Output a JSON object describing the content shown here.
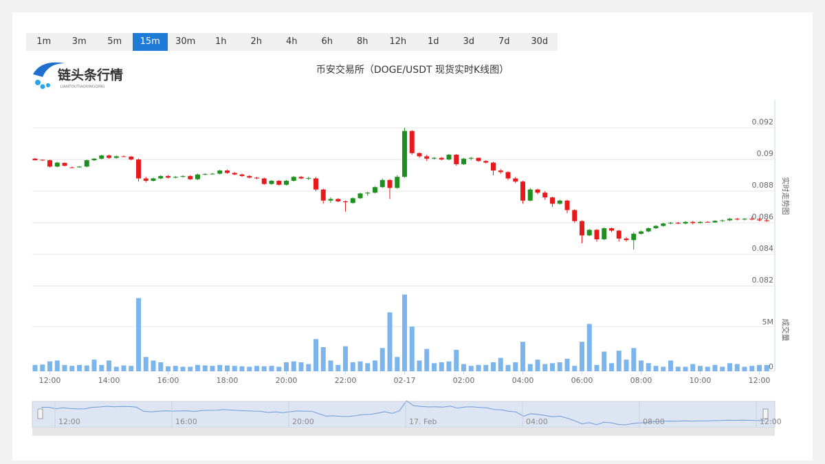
{
  "toolbar": {
    "periods": [
      "1m",
      "3m",
      "5m",
      "15m",
      "30m",
      "1h",
      "2h",
      "4h",
      "6h",
      "8h",
      "12h",
      "1d",
      "3d",
      "7d",
      "30d"
    ],
    "active": 3
  },
  "logo": {
    "text": "链头条行情",
    "subtext": "LIANTOUTIAOXINGQING"
  },
  "chart_data": {
    "type": "candlestick",
    "title": "币安交易所（DOGE/USDT 现货实时K线图）",
    "y_title": "实时走势图",
    "volume_title": "成交量",
    "up_color": "#1f8f1f",
    "down_color": "#e8191a",
    "volume_color": "#7cb5ec",
    "grid": true,
    "ylim": [
      0.08174,
      0.09378
    ],
    "yticks": [
      0.082,
      0.084,
      0.086,
      0.088,
      0.09,
      0.092
    ],
    "volume_ylim": [
      0,
      9100000
    ],
    "volume_yticks": [
      0,
      {
        "value": 5000000,
        "label": "5M"
      }
    ],
    "categories": [
      null,
      null,
      "12:00",
      null,
      null,
      null,
      null,
      null,
      null,
      null,
      "14:00",
      null,
      null,
      null,
      null,
      null,
      null,
      null,
      "16:00",
      null,
      null,
      null,
      null,
      null,
      null,
      null,
      "18:00",
      null,
      null,
      null,
      null,
      null,
      null,
      null,
      "20:00",
      null,
      null,
      null,
      null,
      null,
      null,
      null,
      "22:00",
      null,
      null,
      null,
      null,
      null,
      null,
      null,
      "02-17",
      null,
      null,
      null,
      null,
      null,
      null,
      null,
      "02:00",
      null,
      null,
      null,
      null,
      null,
      null,
      null,
      "04:00",
      null,
      null,
      null,
      null,
      null,
      null,
      null,
      "06:00",
      null,
      null,
      null,
      null,
      null,
      null,
      null,
      "08:00",
      null,
      null,
      null,
      null,
      null,
      null,
      null,
      "10:00",
      null,
      null,
      null,
      null,
      null,
      null,
      null,
      "12:00",
      null
    ],
    "ohlc": [
      [
        0.09005,
        0.0901,
        0.08995,
        0.08995
      ],
      [
        0.08998,
        0.09,
        0.0899,
        0.08995
      ],
      [
        0.08995,
        0.08998,
        0.0895,
        0.08955
      ],
      [
        0.08955,
        0.08985,
        0.0895,
        0.0898
      ],
      [
        0.08978,
        0.08982,
        0.08955,
        0.0896
      ],
      [
        0.0895,
        0.08955,
        0.08945,
        0.08948
      ],
      [
        0.0895,
        0.08958,
        0.08948,
        0.08955
      ],
      [
        0.08955,
        0.09,
        0.0895,
        0.08995
      ],
      [
        0.08995,
        0.09008,
        0.0899,
        0.09005
      ],
      [
        0.09005,
        0.0903,
        0.09,
        0.09025
      ],
      [
        0.09025,
        0.0903,
        0.09005,
        0.0901
      ],
      [
        0.0901,
        0.09025,
        0.09005,
        0.0902
      ],
      [
        0.0902,
        0.09025,
        0.09015,
        0.09018
      ],
      [
        0.09018,
        0.09022,
        0.08995,
        0.09
      ],
      [
        0.09,
        0.09005,
        0.0886,
        0.0888
      ],
      [
        0.0888,
        0.0889,
        0.08855,
        0.08865
      ],
      [
        0.08865,
        0.08885,
        0.0886,
        0.0888
      ],
      [
        0.0888,
        0.089,
        0.08875,
        0.08895
      ],
      [
        0.08895,
        0.089,
        0.0888,
        0.08885
      ],
      [
        0.08885,
        0.08895,
        0.0888,
        0.0889
      ],
      [
        0.0889,
        0.089,
        0.08885,
        0.08895
      ],
      [
        0.08895,
        0.089,
        0.0887,
        0.08875
      ],
      [
        0.08875,
        0.0891,
        0.0887,
        0.08905
      ],
      [
        0.08905,
        0.08912,
        0.089,
        0.08908
      ],
      [
        0.08908,
        0.08915,
        0.08905,
        0.0891
      ],
      [
        0.0891,
        0.08935,
        0.08905,
        0.0893
      ],
      [
        0.0893,
        0.08935,
        0.0891,
        0.08915
      ],
      [
        0.08915,
        0.0892,
        0.089,
        0.08905
      ],
      [
        0.08905,
        0.0891,
        0.0889,
        0.08895
      ],
      [
        0.08895,
        0.089,
        0.0888,
        0.08885
      ],
      [
        0.08885,
        0.0889,
        0.08875,
        0.0888
      ],
      [
        0.0888,
        0.08885,
        0.0884,
        0.08845
      ],
      [
        0.08845,
        0.0887,
        0.0884,
        0.08865
      ],
      [
        0.08865,
        0.0887,
        0.08835,
        0.0884
      ],
      [
        0.0884,
        0.0887,
        0.08835,
        0.08865
      ],
      [
        0.08865,
        0.08895,
        0.0886,
        0.0889
      ],
      [
        0.0889,
        0.08895,
        0.08875,
        0.0888
      ],
      [
        0.0888,
        0.0889,
        0.0887,
        0.08882
      ],
      [
        0.0888,
        0.0889,
        0.088,
        0.0881
      ],
      [
        0.0881,
        0.08815,
        0.0872,
        0.0874
      ],
      [
        0.0874,
        0.0876,
        0.08725,
        0.0875
      ],
      [
        0.0875,
        0.08755,
        0.0873,
        0.08735
      ],
      [
        0.08735,
        0.0874,
        0.0867,
        0.0873
      ],
      [
        0.08725,
        0.0876,
        0.0872,
        0.08755
      ],
      [
        0.08755,
        0.0879,
        0.0875,
        0.08785
      ],
      [
        0.08785,
        0.08795,
        0.0877,
        0.0879
      ],
      [
        0.0879,
        0.0883,
        0.08785,
        0.08825
      ],
      [
        0.08825,
        0.0888,
        0.0882,
        0.0887
      ],
      [
        0.0887,
        0.08875,
        0.0875,
        0.0882
      ],
      [
        0.0882,
        0.089,
        0.08815,
        0.0889
      ],
      [
        0.0889,
        0.092,
        0.08885,
        0.0918
      ],
      [
        0.0918,
        0.09185,
        0.0903,
        0.0904
      ],
      [
        0.0904,
        0.09045,
        0.0901,
        0.0902
      ],
      [
        0.0902,
        0.0903,
        0.0899,
        0.09005
      ],
      [
        0.09005,
        0.09015,
        0.09,
        0.0901
      ],
      [
        0.0901,
        0.09015,
        0.08995,
        0.09
      ],
      [
        0.09,
        0.09035,
        0.08995,
        0.0903
      ],
      [
        0.0903,
        0.09035,
        0.0896,
        0.0897
      ],
      [
        0.0897,
        0.0901,
        0.08965,
        0.09005
      ],
      [
        0.09005,
        0.09015,
        0.08995,
        0.0901
      ],
      [
        0.0901,
        0.09012,
        0.08985,
        0.0899
      ],
      [
        0.0899,
        0.08995,
        0.08975,
        0.0898
      ],
      [
        0.0898,
        0.08985,
        0.089,
        0.0893
      ],
      [
        0.0893,
        0.0894,
        0.0891,
        0.0892
      ],
      [
        0.0892,
        0.08925,
        0.0887,
        0.0888
      ],
      [
        0.0888,
        0.0889,
        0.0885,
        0.0886
      ],
      [
        0.0886,
        0.08865,
        0.0872,
        0.0874
      ],
      [
        0.0874,
        0.0882,
        0.08735,
        0.0881
      ],
      [
        0.0881,
        0.08815,
        0.0878,
        0.0879
      ],
      [
        0.0879,
        0.088,
        0.08745,
        0.0876
      ],
      [
        0.0876,
        0.08765,
        0.087,
        0.0872
      ],
      [
        0.0872,
        0.08745,
        0.08715,
        0.0874
      ],
      [
        0.0874,
        0.08745,
        0.0866,
        0.0868
      ],
      [
        0.0868,
        0.08685,
        0.086,
        0.0861
      ],
      [
        0.0861,
        0.08615,
        0.0847,
        0.0852
      ],
      [
        0.0852,
        0.0856,
        0.08515,
        0.08555
      ],
      [
        0.08555,
        0.0856,
        0.0848,
        0.08495
      ],
      [
        0.08495,
        0.0857,
        0.0849,
        0.08565
      ],
      [
        0.08565,
        0.0857,
        0.0854,
        0.0855
      ],
      [
        0.0855,
        0.08555,
        0.0848,
        0.085
      ],
      [
        0.085,
        0.0851,
        0.0848,
        0.0849
      ],
      [
        0.0849,
        0.0854,
        0.0843,
        0.0853
      ],
      [
        0.0853,
        0.0855,
        0.08525,
        0.08545
      ],
      [
        0.08545,
        0.0857,
        0.0854,
        0.08565
      ],
      [
        0.08565,
        0.08585,
        0.0856,
        0.0858
      ],
      [
        0.0858,
        0.086,
        0.08575,
        0.08595
      ],
      [
        0.08595,
        0.08605,
        0.0859,
        0.086
      ],
      [
        0.086,
        0.08605,
        0.0859,
        0.08595
      ],
      [
        0.08595,
        0.0861,
        0.0859,
        0.08605
      ],
      [
        0.08605,
        0.08612,
        0.0859,
        0.08598
      ],
      [
        0.08598,
        0.0861,
        0.08595,
        0.08605
      ],
      [
        0.08605,
        0.0861,
        0.086,
        0.08602
      ],
      [
        0.08602,
        0.08615,
        0.086,
        0.08612
      ],
      [
        0.08612,
        0.0862,
        0.08605,
        0.08615
      ],
      [
        0.08615,
        0.0863,
        0.0861,
        0.08625
      ],
      [
        0.08625,
        0.0863,
        0.08615,
        0.0862
      ],
      [
        0.0862,
        0.0863,
        0.08615,
        0.08625
      ],
      [
        0.08625,
        0.0864,
        0.08615,
        0.0862
      ],
      [
        0.0862,
        0.0863,
        0.0861,
        0.08615
      ],
      [
        0.08615,
        0.08625,
        0.08605,
        0.0861
      ]
    ],
    "volume": [
      700000,
      750000,
      1100000,
      1200000,
      700000,
      600000,
      700000,
      650000,
      1300000,
      700000,
      1200000,
      500000,
      650000,
      600000,
      8200000,
      1600000,
      1200000,
      1000000,
      550000,
      600000,
      500000,
      500000,
      700000,
      650000,
      600000,
      700000,
      650000,
      600000,
      550000,
      500000,
      600000,
      550000,
      600000,
      500000,
      1000000,
      1100000,
      1000000,
      800000,
      3600000,
      2700000,
      1200000,
      700000,
      2800000,
      1000000,
      1100000,
      900000,
      1200000,
      2600000,
      6600000,
      1600000,
      8600000,
      5000000,
      1200000,
      2500000,
      900000,
      1000000,
      1100000,
      2400000,
      800000,
      600000,
      700000,
      700000,
      1000000,
      1500000,
      700000,
      1000000,
      3300000,
      800000,
      1300000,
      800000,
      900000,
      1000000,
      1400000,
      600000,
      3300000,
      5300000,
      700000,
      2200000,
      900000,
      2300000,
      1300000,
      2600000,
      1200000,
      900000,
      600000,
      500000,
      1200000,
      500000,
      500000,
      800000,
      600000,
      500000,
      700000,
      500000,
      900000,
      800000,
      500000,
      600000,
      700000,
      700000
    ],
    "navigator_labels": [
      "12:00",
      "16:00",
      "20:00",
      "17. Feb",
      "04:00",
      "08:00",
      "12:00"
    ]
  }
}
